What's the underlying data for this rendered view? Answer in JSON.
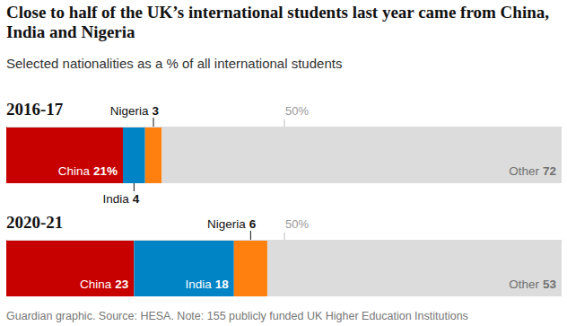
{
  "chart_data": {
    "type": "bar",
    "orientation": "horizontal",
    "stacked": true,
    "data_labels": true,
    "title": "Close to half of the UK’s international students last year came from China, India and Nigeria",
    "subtitle": "Selected nationalities as a % of all international students",
    "source": "Guardian graphic. Source: HESA. Note: 155 publicly funded UK Higher Education Institutions",
    "categories": [
      "2016-17",
      "2020-21"
    ],
    "series": [
      {
        "name": "China",
        "color": "#c70000",
        "values": [
          21,
          23
        ],
        "value_labels": [
          "21%",
          "23"
        ]
      },
      {
        "name": "India",
        "color": "#0084c6",
        "values": [
          4,
          18
        ]
      },
      {
        "name": "Nigeria",
        "color": "#ff7f0f",
        "values": [
          3,
          6
        ]
      },
      {
        "name": "Other",
        "color": "#dcdcdc",
        "values": [
          72,
          53
        ]
      }
    ],
    "xlim": [
      0,
      100
    ],
    "xticks": [
      {
        "value": 50,
        "label": "50%"
      }
    ]
  }
}
